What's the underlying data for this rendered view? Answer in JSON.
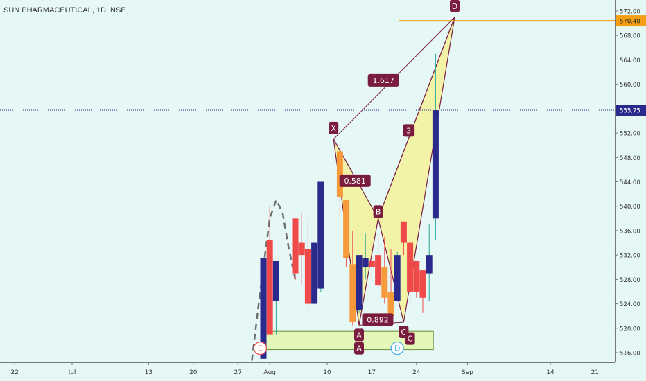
{
  "chart_title": "SUN PHARMACEUTICAL, 1D, NSE",
  "colors": {
    "background": "#e6f8f6",
    "up": "#2a2a8c",
    "down": "#ef4a4a",
    "wick_up": "#27a89a",
    "wick_down": "#ef4a4a",
    "pattern_fill": "#f5f29a",
    "pattern_line": "#7a1c3e",
    "pattern_label": "#7a1c3e",
    "box_fill": "#e3f7b8",
    "box_stroke": "#6d8b3a",
    "level_line": "#f49e14",
    "price_line": "#2a2a8c",
    "highlight_candle": "#f79a3c"
  },
  "chart_data": {
    "type": "candlestick",
    "symbol": "SUN PHARMACEUTICAL",
    "interval": "1D",
    "exchange": "NSE",
    "y_range": [
      515,
      573
    ],
    "y_ticks": [
      {
        "value": 516,
        "label": "516.00"
      },
      {
        "value": 520,
        "label": "520.00"
      },
      {
        "value": 524,
        "label": "524.00"
      },
      {
        "value": 528,
        "label": "528.00"
      },
      {
        "value": 532,
        "label": "532.00"
      },
      {
        "value": 536,
        "label": "536.00"
      },
      {
        "value": 540,
        "label": "540.00"
      },
      {
        "value": 544,
        "label": "544.00"
      },
      {
        "value": 548,
        "label": "548.00"
      },
      {
        "value": 552,
        "label": "552.00"
      },
      {
        "value": 556,
        "label": "556.00"
      },
      {
        "value": 560,
        "label": "560.00"
      },
      {
        "value": 564,
        "label": "564.00"
      },
      {
        "value": 568,
        "label": "568.00"
      },
      {
        "value": 572,
        "label": "572.00"
      }
    ],
    "x_ticks": [
      {
        "day": -9,
        "label": "22"
      },
      {
        "day": 0,
        "label": "Jul"
      },
      {
        "day": 12,
        "label": "13"
      },
      {
        "day": 19,
        "label": "20"
      },
      {
        "day": 26,
        "label": "27"
      },
      {
        "day": 31,
        "label": "Aug"
      },
      {
        "day": 40,
        "label": "10"
      },
      {
        "day": 47,
        "label": "17"
      },
      {
        "day": 54,
        "label": "24"
      },
      {
        "day": 62,
        "label": "Sep"
      },
      {
        "day": 75,
        "label": "14"
      },
      {
        "day": 82,
        "label": "21"
      }
    ],
    "candles": [
      {
        "day": 30,
        "open": 515,
        "high": 531.5,
        "low": 515,
        "close": 531.5
      },
      {
        "day": 31,
        "open": 534.5,
        "high": 540,
        "low": 519,
        "close": 519
      },
      {
        "day": 32,
        "open": 524.5,
        "high": 531,
        "low": 519,
        "close": 531
      },
      {
        "day": 35,
        "open": 538,
        "high": 538,
        "low": 528,
        "close": 529
      },
      {
        "day": 36,
        "open": 534,
        "high": 539,
        "low": 527,
        "close": 532
      },
      {
        "day": 37,
        "open": 533,
        "high": 538,
        "low": 523,
        "close": 524
      },
      {
        "day": 38,
        "open": 524,
        "high": 534,
        "low": 524,
        "close": 534
      },
      {
        "day": 39,
        "open": 526.5,
        "high": 544,
        "low": 526,
        "close": 544
      },
      {
        "day": 42,
        "open": 549,
        "high": 549,
        "low": 538,
        "close": 541.5
      },
      {
        "day": 43,
        "open": 541,
        "high": 541,
        "low": 530,
        "close": 531.5
      },
      {
        "day": 44,
        "open": 530.5,
        "high": 536,
        "low": 520.5,
        "close": 521
      },
      {
        "day": 45,
        "open": 523,
        "high": 532,
        "low": 522.5,
        "close": 532
      },
      {
        "day": 46,
        "open": 530,
        "high": 535.5,
        "low": 528,
        "close": 531.5
      },
      {
        "day": 47,
        "open": 531,
        "high": 534.5,
        "low": 528,
        "close": 530
      },
      {
        "day": 48,
        "open": 532,
        "high": 535,
        "low": 526,
        "close": 527
      },
      {
        "day": 49,
        "open": 530,
        "high": 535,
        "low": 524,
        "close": 525
      },
      {
        "day": 50,
        "open": 526,
        "high": 533,
        "low": 521,
        "close": 522
      },
      {
        "day": 51,
        "open": 524.5,
        "high": 532.5,
        "low": 524.5,
        "close": 532
      },
      {
        "day": 52,
        "open": 537.5,
        "high": 537.5,
        "low": 532,
        "close": 534
      },
      {
        "day": 53,
        "open": 534,
        "high": 534,
        "low": 524,
        "close": 526
      },
      {
        "day": 54,
        "open": 531,
        "high": 531,
        "low": 525,
        "close": 526
      },
      {
        "day": 55,
        "open": 529.5,
        "high": 529.5,
        "low": 522.5,
        "close": 525
      },
      {
        "day": 56,
        "open": 529,
        "high": 537,
        "low": 524.5,
        "close": 532
      },
      {
        "day": 57,
        "open": 538,
        "high": 565,
        "low": 534.5,
        "close": 555.75
      }
    ],
    "highlighted_candles": [
      42,
      43,
      44,
      49,
      50
    ],
    "harmonic_pattern": {
      "points": [
        {
          "label": "X",
          "day": 41,
          "price": 551
        },
        {
          "label": "A",
          "day": 45,
          "price": 520.5
        },
        {
          "label": "B",
          "day": 48,
          "price": 538
        },
        {
          "label": "C",
          "day": 52,
          "price": 521
        },
        {
          "label": "D",
          "day": 60,
          "price": 571
        }
      ],
      "ratios": [
        {
          "label": "0.581",
          "between": "XB"
        },
        {
          "label": "0.892",
          "between": "AC"
        },
        {
          "label": "1.617",
          "between": "XD"
        },
        {
          "label": "3",
          "between": "BD"
        }
      ]
    },
    "abcd_box": {
      "day_start": 31,
      "day_end": 56,
      "price_low": 516.5,
      "price_high": 519.5,
      "labels": [
        {
          "label": "E",
          "day": 29.5
        },
        {
          "label": "A",
          "day": 45
        },
        {
          "label": "D",
          "day": 51
        },
        {
          "label": "C",
          "day": 53
        }
      ]
    },
    "dashed_path": [
      {
        "day": 28,
        "price": 513
      },
      {
        "day": 29.5,
        "price": 526
      },
      {
        "day": 31,
        "price": 538
      },
      {
        "day": 32,
        "price": 541
      },
      {
        "day": 33,
        "price": 539
      },
      {
        "day": 34,
        "price": 533
      },
      {
        "day": 35,
        "price": 528
      }
    ],
    "levels": [
      {
        "price": 570.4,
        "label": "570.40",
        "type": "resistance"
      },
      {
        "price": 555.75,
        "label": "555.75",
        "type": "last_price"
      }
    ]
  }
}
